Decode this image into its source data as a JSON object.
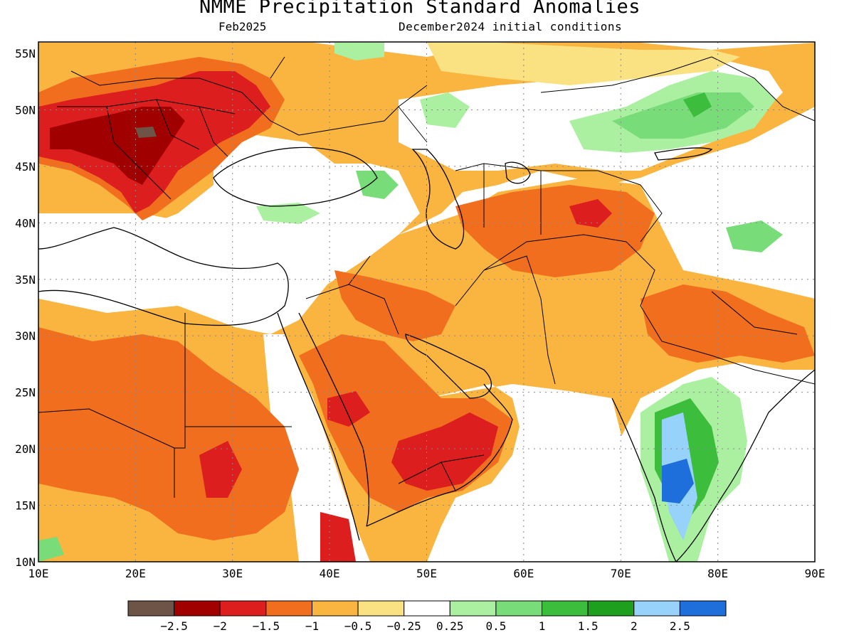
{
  "title": "NMME Precipitation Standard Anomalies",
  "forecast_month": "Feb2025",
  "initial_conditions": "December2024 initial conditions",
  "axes": {
    "lat_labels": [
      "55N",
      "50N",
      "45N",
      "40N",
      "35N",
      "30N",
      "25N",
      "20N",
      "15N",
      "10N"
    ],
    "lon_labels": [
      "10E",
      "20E",
      "30E",
      "40E",
      "50E",
      "60E",
      "70E",
      "80E",
      "90E"
    ]
  },
  "colorbar": {
    "colors": [
      "#6e5446",
      "#a00000",
      "#dc1e1e",
      "#f06e1e",
      "#fab440",
      "#fae282",
      "#ffffff",
      "#aaf0a0",
      "#78dc78",
      "#3cbe3c",
      "#1ea01e",
      "#96d2fa",
      "#1e6edc"
    ],
    "labels": [
      "-2.5",
      "-2",
      "-1.5",
      "-1",
      "-0.5",
      "-0.25",
      "0.25",
      "0.5",
      "1",
      "1.5",
      "2",
      "2.5"
    ]
  },
  "regions": [
    {
      "name": "central-europe-deficit",
      "color": "#dc1e1e"
    },
    {
      "name": "carpathian-deficit",
      "color": "#a00000"
    },
    {
      "name": "arabian-peninsula-deficit",
      "color": "#f06e1e"
    },
    {
      "name": "south-india-surplus",
      "color": "#1e6edc"
    },
    {
      "name": "central-asia-surplus",
      "color": "#78dc78"
    }
  ]
}
